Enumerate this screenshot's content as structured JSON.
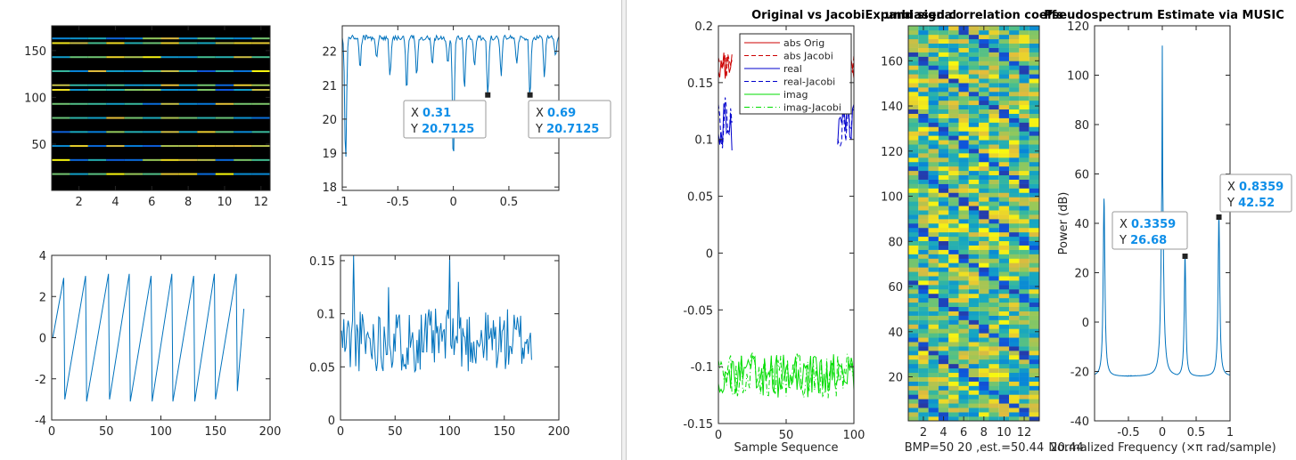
{
  "chart_data": [
    {
      "id": "heat1",
      "type": "heatmap",
      "xlim": [
        0.5,
        12.5
      ],
      "ylim": [
        0.5,
        176.5
      ],
      "xticks": [
        2,
        4,
        6,
        8,
        10,
        12
      ],
      "yticks": [
        50,
        100,
        150
      ],
      "background": "#000000",
      "row_values": [
        18,
        33,
        48,
        63,
        78,
        93,
        108,
        113,
        128,
        143,
        158,
        163
      ],
      "colormap": "parula"
    },
    {
      "id": "line1",
      "type": "line",
      "xlim": [
        -1,
        0.95
      ],
      "ylim": [
        17.9,
        22.75
      ],
      "xticks": [
        -1,
        -0.5,
        0,
        0.5
      ],
      "yticks": [
        18,
        19,
        20,
        21,
        22
      ],
      "baseline": 22.4,
      "dips": [
        {
          "x": -0.97,
          "y": 18.7
        },
        {
          "x": -0.84,
          "y": 21.5
        },
        {
          "x": -0.69,
          "y": 21.8
        },
        {
          "x": -0.57,
          "y": 21.3
        },
        {
          "x": -0.42,
          "y": 20.8
        },
        {
          "x": -0.33,
          "y": 21.3
        },
        {
          "x": -0.19,
          "y": 21.6
        },
        {
          "x": -0.05,
          "y": 21.6
        },
        {
          "x": 0,
          "y": 18.7
        },
        {
          "x": 0.1,
          "y": 20.9
        },
        {
          "x": 0.19,
          "y": 21.5
        },
        {
          "x": 0.31,
          "y": 20.71
        },
        {
          "x": 0.43,
          "y": 21.3
        },
        {
          "x": 0.57,
          "y": 21.6
        },
        {
          "x": 0.69,
          "y": 20.71
        },
        {
          "x": 0.82,
          "y": 21.3
        },
        {
          "x": 0.92,
          "y": 21.8
        }
      ],
      "datatips": [
        {
          "x_key": "X",
          "x_val": "0.31",
          "y_key": "Y",
          "y_val": "20.7125",
          "x": 0.31,
          "y": 20.7125
        },
        {
          "x_key": "X",
          "x_val": "0.69",
          "y_key": "Y",
          "y_val": "20.7125",
          "x": 0.69,
          "y": 20.7125
        }
      ]
    },
    {
      "id": "saw",
      "type": "line",
      "xlim": [
        0,
        200
      ],
      "ylim": [
        -4,
        4
      ],
      "xticks": [
        0,
        50,
        100,
        150,
        200
      ],
      "yticks": [
        -4,
        -2,
        0,
        2,
        4
      ],
      "vertices": [
        [
          1,
          0
        ],
        [
          11,
          2.9
        ],
        [
          12,
          -3.0
        ],
        [
          31,
          3.0
        ],
        [
          32,
          -3.1
        ],
        [
          52,
          3.1
        ],
        [
          53,
          -3.0
        ],
        [
          71,
          3.1
        ],
        [
          72,
          -3.1
        ],
        [
          91,
          3.0
        ],
        [
          92,
          -3.1
        ],
        [
          110,
          3.1
        ],
        [
          111,
          -3.1
        ],
        [
          130,
          3.0
        ],
        [
          131,
          -3.1
        ],
        [
          149,
          3.1
        ],
        [
          150,
          -3.0
        ],
        [
          169,
          3.1
        ],
        [
          170,
          -2.6
        ],
        [
          176,
          1.4
        ]
      ]
    },
    {
      "id": "noise",
      "type": "line",
      "xlim": [
        0,
        200
      ],
      "ylim": [
        0,
        0.155
      ],
      "xticks": [
        0,
        50,
        100,
        150,
        200
      ],
      "yticks": [
        0,
        0.05,
        0.1,
        0.15
      ],
      "x_range": [
        1,
        175
      ],
      "mean": 0.075,
      "amplitude": 0.03,
      "peaks": [
        {
          "x": 12,
          "y": 0.155
        },
        {
          "x": 100,
          "y": 0.155
        },
        {
          "x": 108,
          "y": 0.13
        },
        {
          "x": 44,
          "y": 0.125
        }
      ]
    },
    {
      "id": "compare",
      "type": "line",
      "title": "Original vs JacobiExpand signal",
      "xlabel": "Sample Sequence",
      "xlim": [
        0,
        100
      ],
      "ylim": [
        -0.15,
        0.2
      ],
      "xticks": [
        0,
        50,
        100
      ],
      "yticks": [
        -0.15,
        -0.1,
        -0.05,
        0,
        0.05,
        0.1,
        0.15,
        0.2
      ],
      "series": [
        {
          "name": "abs Orig",
          "color": "#cc0000",
          "style": "solid",
          "mean": 0.165,
          "amp": 0.012
        },
        {
          "name": "abs Jacobi",
          "color": "#cc0000",
          "style": "dashed",
          "mean": 0.165,
          "amp": 0.012
        },
        {
          "name": "real",
          "color": "#0000cc",
          "style": "solid",
          "mean": 0.115,
          "amp": 0.025
        },
        {
          "name": "real-Jacobi",
          "color": "#0000cc",
          "style": "dashed",
          "mean": 0.115,
          "amp": 0.025
        },
        {
          "name": "imag",
          "color": "#00dd00",
          "style": "solid",
          "mean": -0.108,
          "amp": 0.02
        },
        {
          "name": "imag-Jacobi",
          "color": "#00dd00",
          "style": "dashdot",
          "mean": -0.108,
          "amp": 0.02
        }
      ],
      "visible_range": [
        0,
        100
      ],
      "gap": [
        10,
        88
      ]
    },
    {
      "id": "heat2",
      "type": "heatmap",
      "title": "unbiased correlation  coeffs",
      "xlabel": "BMP=50  20 ,est.=50.44",
      "xlim": [
        0.5,
        13.5
      ],
      "ylim": [
        0.5,
        175.5
      ],
      "xticks": [
        2,
        4,
        6,
        8,
        10,
        12
      ],
      "yticks": [
        20,
        40,
        60,
        80,
        100,
        120,
        140,
        160
      ],
      "colormap": "parula"
    },
    {
      "id": "music",
      "type": "line",
      "title": "Pseudospectrum Estimate via MUSIC",
      "xlabel": "Normalized Frequency  (×π rad/sample)",
      "ylabel": "Power (dB)",
      "xlim": [
        -1,
        1
      ],
      "ylim": [
        -40,
        120
      ],
      "xticks": [
        -0.5,
        0,
        0.5,
        1
      ],
      "yticks": [
        -40,
        -20,
        0,
        20,
        40,
        60,
        80,
        100,
        120
      ],
      "baseline": -22,
      "peaks": [
        {
          "x": -0.86,
          "y": 50,
          "w": 0.015
        },
        {
          "x": 0,
          "y": 112,
          "w": 0.006
        },
        {
          "x": 0,
          "y": 66,
          "w": 0.02
        },
        {
          "x": 0.3359,
          "y": 26.68,
          "w": 0.014
        },
        {
          "x": 0.8359,
          "y": 42.52,
          "w": 0.015
        }
      ],
      "datatips": [
        {
          "x_key": "X",
          "x_val": "0.3359",
          "y_key": "Y",
          "y_val": "26.68",
          "x": 0.3359,
          "y": 26.68
        },
        {
          "x_key": "X",
          "x_val": "0.8359",
          "y_key": "Y",
          "y_val": "42.52",
          "x": 0.8359,
          "y": 42.52
        }
      ],
      "overlap_text": "20.44"
    }
  ]
}
